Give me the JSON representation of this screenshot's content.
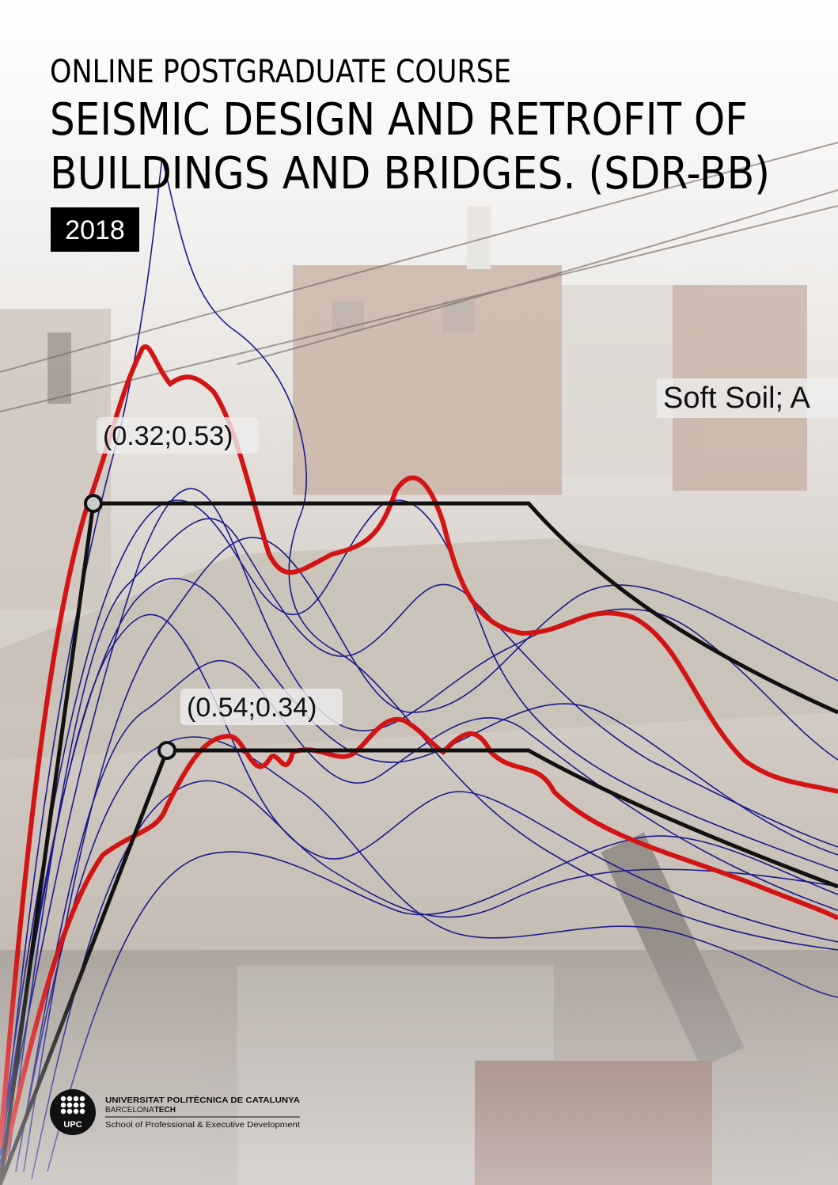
{
  "header": {
    "kicker": "ONLINE POSTGRADUATE COURSE",
    "title_lines": [
      "SEISMIC DESIGN AND RETROFIT OF",
      "BUILDINGS AND BRIDGES. (SDR-BB)"
    ],
    "year": "2018"
  },
  "figure": {
    "annotations": [
      "(0.32;0.53)",
      "(0.54;0.34)"
    ],
    "legend_fragment": "Soft Soil; A"
  },
  "footer": {
    "logo_mark": "UPC",
    "university": "UNIVERSITAT POLITÈCNICA DE CATALUNYA",
    "city": "BARCELONA",
    "city_suffix": "TECH",
    "school": "School of Professional & Executive Development"
  }
}
